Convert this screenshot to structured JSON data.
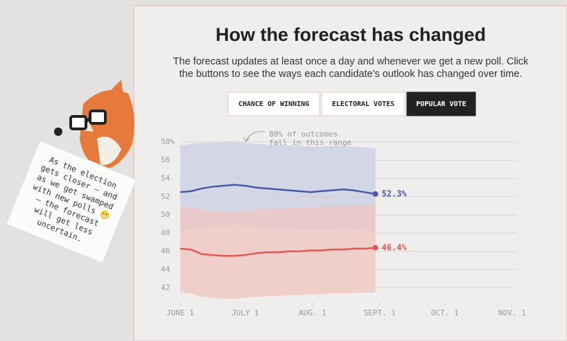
{
  "chart_data": {
    "type": "line",
    "title": "How the forecast has changed",
    "subtitle": [
      "The forecast updates at least once a day and whenever we get a new poll. Click",
      "the buttons to see the ways each candidate’s outlook has changed over time."
    ],
    "annotation": [
      "80% of outcomes",
      "fall in this range"
    ],
    "x": [
      0,
      5,
      10,
      15,
      20,
      25,
      30,
      35,
      40,
      45,
      50,
      55,
      60,
      65,
      70,
      75,
      80,
      85,
      90
    ],
    "xlim": [
      0,
      155
    ],
    "xticks": [
      {
        "value": 0,
        "label": "JUNE 1"
      },
      {
        "value": 30,
        "label": "JULY 1"
      },
      {
        "value": 61,
        "label": "AUG. 1"
      },
      {
        "value": 92,
        "label": "SEPT. 1"
      },
      {
        "value": 122,
        "label": "OCT. 1"
      },
      {
        "value": 153,
        "label": "NOV. 1"
      }
    ],
    "ylim": [
      40.5,
      58.6
    ],
    "yticks": [
      42,
      44,
      46,
      48,
      50,
      52,
      54,
      56,
      {
        "value": 58,
        "label": "58%"
      }
    ],
    "grid": true,
    "series": [
      {
        "color": "#4a58a6",
        "band_color": "#c9cee3",
        "values": [
          52.5,
          52.6,
          52.9,
          53.1,
          53.2,
          53.3,
          53.2,
          53.0,
          52.9,
          52.8,
          52.7,
          52.6,
          52.5,
          52.6,
          52.7,
          52.8,
          52.7,
          52.5,
          52.3
        ],
        "value_labels": [
          null,
          null,
          null,
          null,
          null,
          null,
          null,
          null,
          null,
          null,
          null,
          null,
          null,
          null,
          null,
          null,
          null,
          null,
          "52.3%"
        ],
        "high": [
          57.6,
          57.8,
          57.9,
          57.9,
          58.0,
          58.0,
          57.9,
          57.8,
          57.7,
          57.7,
          57.6,
          57.6,
          57.5,
          57.5,
          57.6,
          57.6,
          57.5,
          57.4,
          57.3
        ],
        "low": [
          48.3,
          48.4,
          48.6,
          48.7,
          48.8,
          48.9,
          48.8,
          48.7,
          48.6,
          48.5,
          48.5,
          48.4,
          48.3,
          48.4,
          48.4,
          48.5,
          48.4,
          48.3,
          48.2
        ]
      },
      {
        "color": "#e0584f",
        "band_color": "#f0c4c0",
        "values": [
          46.3,
          46.2,
          45.7,
          45.6,
          45.5,
          45.5,
          45.6,
          45.8,
          45.9,
          45.9,
          46.0,
          46.0,
          46.1,
          46.1,
          46.2,
          46.2,
          46.3,
          46.3,
          46.4
        ],
        "value_labels": [
          null,
          null,
          null,
          null,
          null,
          null,
          null,
          null,
          null,
          null,
          null,
          null,
          null,
          null,
          null,
          null,
          null,
          null,
          "46.4%"
        ],
        "high": [
          51.0,
          50.9,
          50.5,
          50.4,
          50.3,
          50.3,
          50.4,
          50.6,
          50.6,
          50.7,
          50.8,
          50.8,
          50.9,
          50.9,
          51.0,
          51.0,
          51.0,
          51.1,
          51.1
        ],
        "low": [
          41.5,
          41.4,
          41.0,
          40.9,
          40.8,
          40.8,
          40.9,
          41.0,
          41.1,
          41.1,
          41.2,
          41.2,
          41.3,
          41.3,
          41.4,
          41.4,
          41.4,
          41.5,
          41.5
        ]
      }
    ]
  },
  "buttons": {
    "labels": [
      "CHANCE OF WINNING",
      "ELECTORAL VOTES",
      "POPULAR VOTE"
    ],
    "active": 2
  },
  "note": {
    "lines": [
      "As the election",
      "gets closer — and",
      "as we get swamped",
      "with new polls 😬",
      "— the forecast",
      "will get less",
      "uncertain."
    ]
  }
}
